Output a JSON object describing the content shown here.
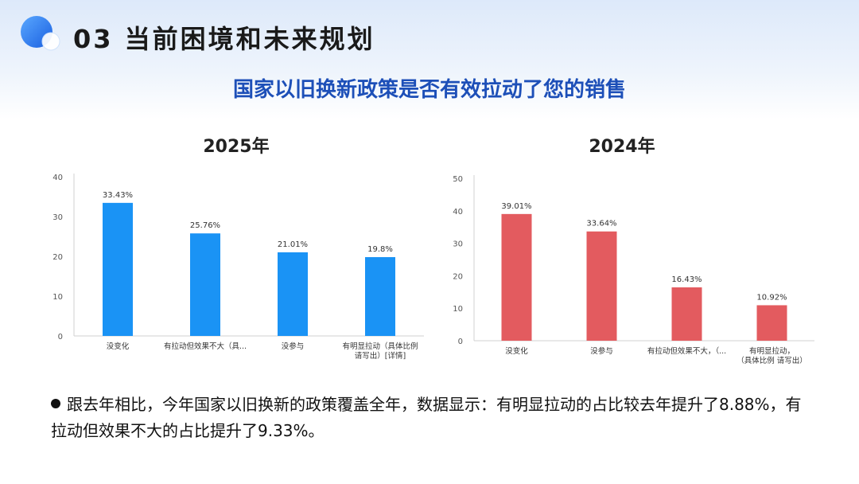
{
  "page": {
    "section_title": "03 当前困境和未来规划",
    "subtitle": "国家以旧换新政策是否有效拉动了您的销售",
    "bullet_text": "跟去年相比，今年国家以旧换新的政策覆盖全年，数据显示：有明显拉动的占比较去年提升了8.88%，有拉动但效果不大的占比提升了9.33%。"
  },
  "chart_data": [
    {
      "type": "bar",
      "title": "2025年",
      "categories": [
        [
          "没变化"
        ],
        [
          "有拉动但效果不大（具..."
        ],
        [
          "没参与"
        ],
        [
          "有明显拉动（具体比例",
          "请写出）[详情]"
        ]
      ],
      "values": [
        33.43,
        25.76,
        21.01,
        19.8
      ],
      "value_labels": [
        "33.43%",
        "25.76%",
        "21.01%",
        "19.8%"
      ],
      "ylim": [
        0,
        40
      ],
      "yticks": [
        0,
        10,
        20,
        30,
        40
      ],
      "color": "#1a93f5"
    },
    {
      "type": "bar",
      "title": "2024年",
      "categories": [
        [
          "没变化"
        ],
        [
          "没参与"
        ],
        [
          "有拉动但效果不大，（..."
        ],
        [
          "有明显拉动，",
          "（具体比例 请写出）"
        ]
      ],
      "values": [
        39.01,
        33.64,
        16.43,
        10.92
      ],
      "value_labels": [
        "39.01%",
        "33.64%",
        "16.43%",
        "10.92%"
      ],
      "ylim": [
        0,
        50
      ],
      "yticks": [
        0,
        10,
        20,
        30,
        40,
        50
      ],
      "color": "#e35b5f"
    }
  ]
}
